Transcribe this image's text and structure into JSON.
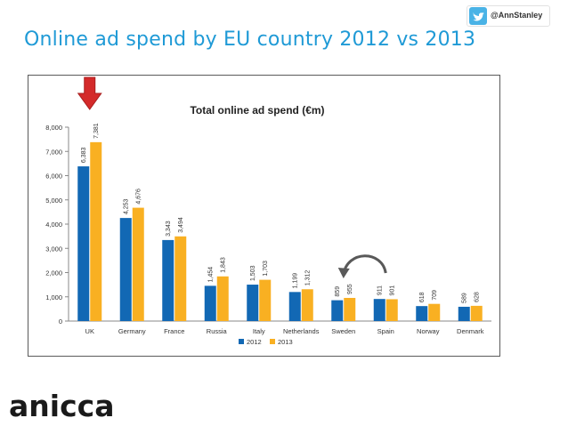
{
  "header": {
    "twitter_handle": "@AnnStanley",
    "slide_title": "Online ad spend by EU country 2012 vs 2013"
  },
  "branding": {
    "logo_text": "anicca"
  },
  "colors": {
    "series_2012": "#1268b4",
    "series_2013": "#f9b022",
    "title": "#1f9ad6",
    "arrow_down": "#d42a2a",
    "arrow_curve": "#595959",
    "twitter": "#4ab3e6"
  },
  "icons": {
    "twitter": "twitter-bird-icon",
    "highlight": "down-arrow-icon",
    "swap": "curved-arrow-icon"
  },
  "chart_data": {
    "type": "bar",
    "title": "Total online ad spend (€m)",
    "categories": [
      "UK",
      "Germany",
      "France",
      "Russia",
      "Italy",
      "Netherlands",
      "Sweden",
      "Spain",
      "Norway",
      "Denmark"
    ],
    "series": [
      {
        "name": "2012",
        "values": [
          6383,
          4253,
          3343,
          1454,
          1503,
          1199,
          859,
          911,
          618,
          589
        ],
        "labels": [
          "6,383",
          "4,253",
          "3,343",
          "1,454",
          "1,503",
          "1,199",
          "859",
          "911",
          "618",
          "589"
        ]
      },
      {
        "name": "2013",
        "values": [
          7381,
          4676,
          3494,
          1843,
          1703,
          1312,
          955,
          901,
          709,
          628
        ],
        "labels": [
          "7,381",
          "4,676",
          "3,494",
          "1,843",
          "1,703",
          "1,312",
          "955",
          "901",
          "709",
          "628"
        ]
      }
    ],
    "ylim": [
      0,
      8000
    ],
    "yticks": [
      0,
      1000,
      2000,
      3000,
      4000,
      5000,
      6000,
      7000,
      8000
    ],
    "ytick_labels": [
      "0",
      "1,000",
      "2,000",
      "3,000",
      "4,000",
      "5,000",
      "6,000",
      "7,000",
      "8,000"
    ],
    "xlabel": "",
    "ylabel": "",
    "grid": false,
    "legend_position": "bottom"
  }
}
